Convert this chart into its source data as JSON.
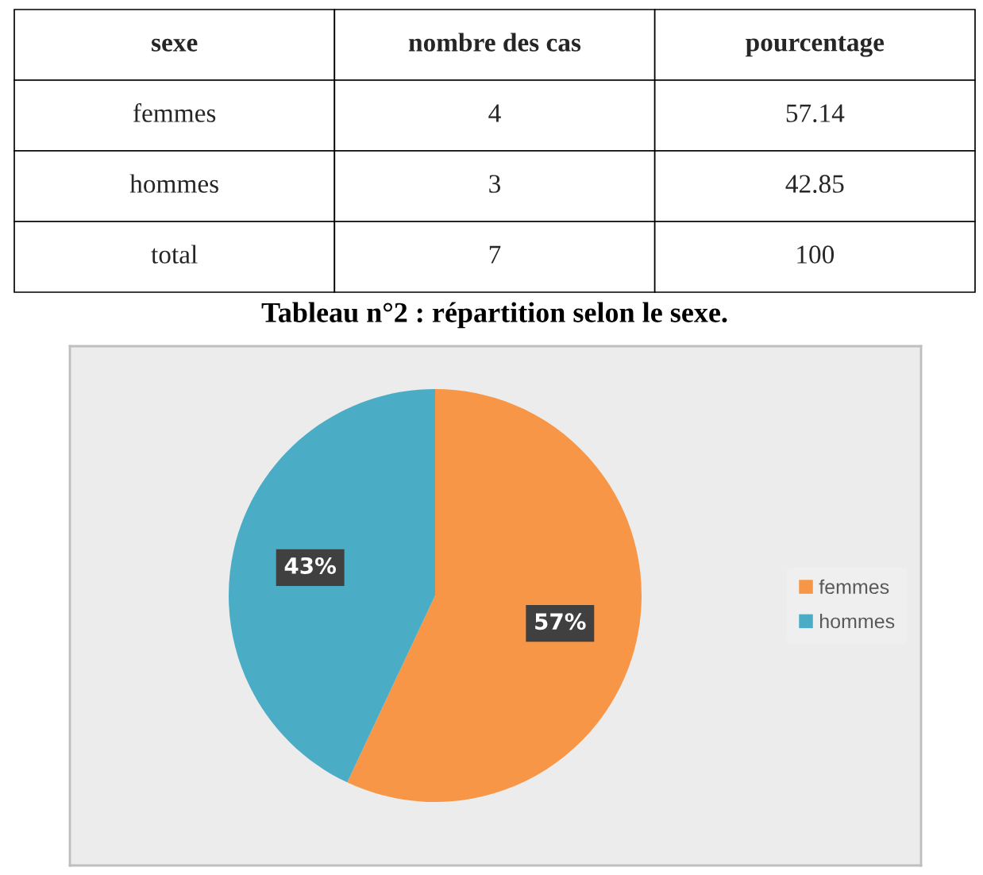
{
  "chart_data": [
    {
      "type": "other",
      "ylabel": "sexe",
      "categories": [
        "nombre des cas",
        "pourcentage"
      ],
      "y_categories": [
        "femmes",
        "hommes",
        "total"
      ],
      "cell_labels": [
        [
          "4",
          "57.14"
        ],
        [
          "3",
          "42.85"
        ],
        [
          "7",
          "100"
        ]
      ],
      "annotations": [
        "Tableau n°2 : répartition selon le sexe."
      ]
    },
    {
      "type": "pie",
      "categories": [
        "femmes",
        "hommes"
      ],
      "values": [
        57,
        43
      ],
      "colors": [
        "#f79646",
        "#4bacc6"
      ],
      "value_labels": [
        "57%",
        "43%"
      ],
      "legend": "right"
    }
  ]
}
